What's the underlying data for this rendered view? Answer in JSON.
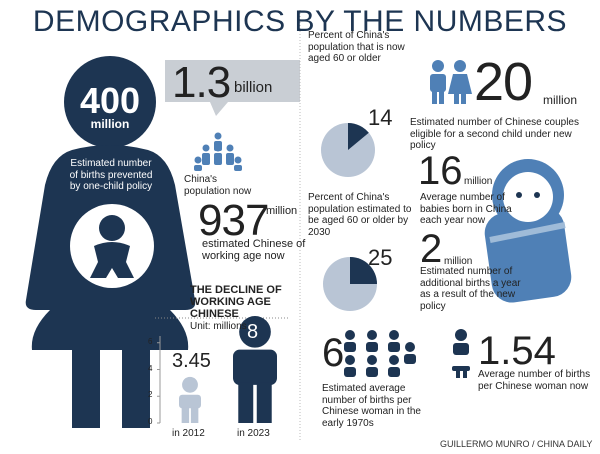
{
  "title": "DEMOGRAPHICS BY THE NUMBERS",
  "births_prevented": {
    "number": 400,
    "unit": "million",
    "caption": "Estimated number of births prevented by one-child policy"
  },
  "population": {
    "number": 1.3,
    "unit": "billion",
    "caption": "China's population now"
  },
  "working_age": {
    "number": 937,
    "unit": "million",
    "caption": "estimated Chinese of working age now"
  },
  "couples": {
    "number": 20,
    "unit": "million",
    "caption": "Estimated number of Chinese couples eligible for a second child under new policy"
  },
  "births_per_year": {
    "number": 16,
    "unit": "million",
    "caption": "Average number of babies born in China each year now"
  },
  "additional_births": {
    "number": 2,
    "unit": "million",
    "caption": "Estimated number of additional births a year as a result of the new policy"
  },
  "births_1970s": {
    "number": 6,
    "caption": "Estimated average number of births per Chinese woman in the early 1970s"
  },
  "births_now": {
    "number": 1.54,
    "caption": "Average number of births per Chinese woman now"
  },
  "credit": "GUILLERMO MUNRO / CHINA DAILY",
  "chart_data": [
    {
      "type": "pie",
      "title": "Percent of China's population that is now aged 60 or older",
      "values": [
        14
      ],
      "color": "#1d3552",
      "background": "#b9c5d5"
    },
    {
      "type": "pie",
      "title": "Percent of China's population estimated to be aged 60 or older by 2030",
      "values": [
        25
      ],
      "color": "#1d3552",
      "background": "#b9c5d5"
    },
    {
      "type": "figure-bar",
      "title": "THE DECLINE OF WORKING AGE CHINESE",
      "subtitle": "Unit: millions",
      "categories": [
        "in 2012",
        "in 2023"
      ],
      "values": [
        3.45,
        8
      ],
      "colors": [
        "#b9c5d5",
        "#1d3552"
      ],
      "ylim": [
        0,
        8
      ],
      "yticks": [
        0,
        2,
        4,
        6
      ]
    }
  ]
}
